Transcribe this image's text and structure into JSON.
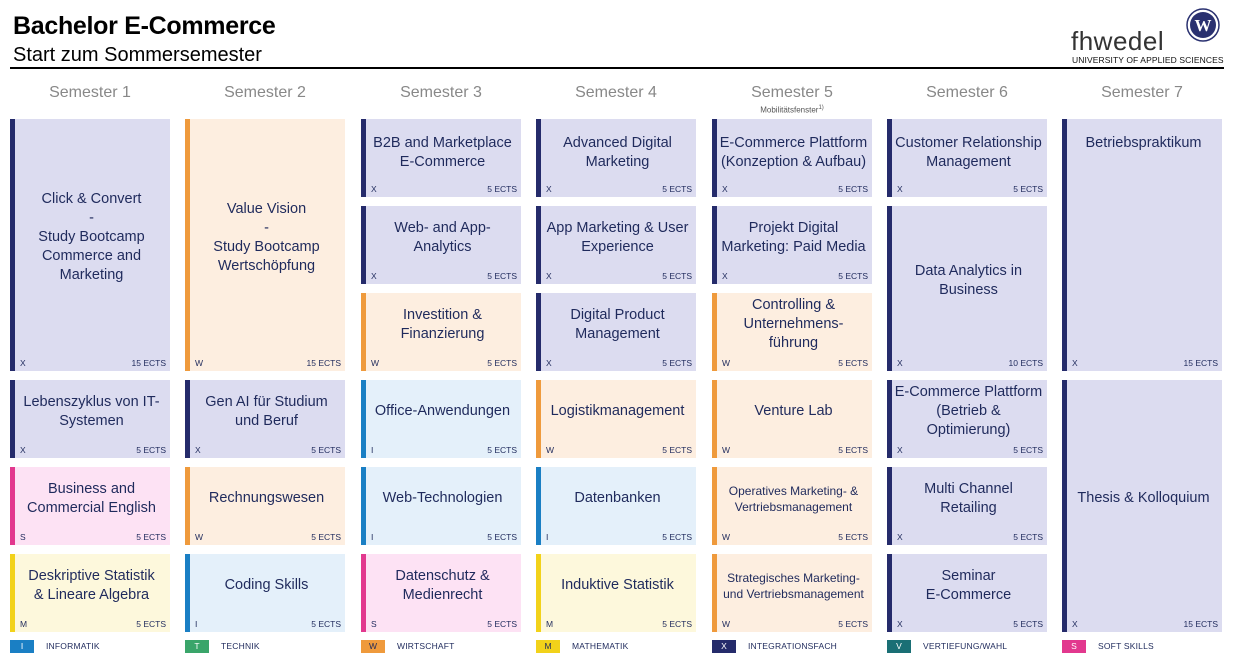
{
  "header": {
    "title": "Bachelor E-Commerce",
    "subtitle": "Start zum Sommersemester",
    "logo_text": "fhwedel",
    "logo_subtitle": "UNIVERSITY OF APPLIED SCIENCES",
    "logo_emblem_letter": "W"
  },
  "semesters": [
    {
      "label": "Semester 1",
      "note": ""
    },
    {
      "label": "Semester 2",
      "note": ""
    },
    {
      "label": "Semester 3",
      "note": ""
    },
    {
      "label": "Semester 4",
      "note": ""
    },
    {
      "label": "Semester 5",
      "note": "Mobilitätsfenster",
      "note_sup": "1)"
    },
    {
      "label": "Semester 6",
      "note": ""
    },
    {
      "label": "Semester 7",
      "note": ""
    }
  ],
  "modules": [
    {
      "col": 0,
      "row": 0,
      "span": 3,
      "name": "Click & Convert\n-\nStudy Bootcamp\nCommerce and\nMarketing",
      "code": "X",
      "ects": "15 ECTS"
    },
    {
      "col": 0,
      "row": 3,
      "span": 1,
      "name": "Lebenszyklus von IT-\nSystemen",
      "code": "X",
      "ects": "5 ECTS"
    },
    {
      "col": 0,
      "row": 4,
      "span": 1,
      "name": "Business and\nCommercial English",
      "code": "S",
      "ects": "5 ECTS"
    },
    {
      "col": 0,
      "row": 5,
      "span": 1,
      "name": "Deskriptive Statistik\n& Lineare Algebra",
      "code": "M",
      "ects": "5 ECTS"
    },
    {
      "col": 1,
      "row": 0,
      "span": 3,
      "name": "Value Vision\n-\nStudy Bootcamp\nWertschöpfung",
      "code": "W",
      "ects": "15 ECTS"
    },
    {
      "col": 1,
      "row": 3,
      "span": 1,
      "name": "Gen AI für Studium\nund Beruf",
      "code": "X",
      "ects": "5 ECTS"
    },
    {
      "col": 1,
      "row": 4,
      "span": 1,
      "name": "Rechnungswesen",
      "code": "W",
      "ects": "5 ECTS"
    },
    {
      "col": 1,
      "row": 5,
      "span": 1,
      "name": "Coding Skills",
      "code": "I",
      "ects": "5 ECTS"
    },
    {
      "col": 2,
      "row": 0,
      "span": 1,
      "name": "B2B and Marketplace\nE-Commerce",
      "code": "X",
      "ects": "5 ECTS",
      "top": true
    },
    {
      "col": 2,
      "row": 1,
      "span": 1,
      "name": "Web- and App-\nAnalytics",
      "code": "X",
      "ects": "5 ECTS"
    },
    {
      "col": 2,
      "row": 2,
      "span": 1,
      "name": "Investition &\nFinanzierung",
      "code": "W",
      "ects": "5 ECTS"
    },
    {
      "col": 2,
      "row": 3,
      "span": 1,
      "name": "Office-Anwendungen",
      "code": "I",
      "ects": "5 ECTS"
    },
    {
      "col": 2,
      "row": 4,
      "span": 1,
      "name": "Web-Technologien",
      "code": "I",
      "ects": "5 ECTS"
    },
    {
      "col": 2,
      "row": 5,
      "span": 1,
      "name": "Datenschutz &\nMedienrecht",
      "code": "S",
      "ects": "5 ECTS"
    },
    {
      "col": 3,
      "row": 0,
      "span": 1,
      "name": "Advanced Digital\nMarketing",
      "code": "X",
      "ects": "5 ECTS",
      "top": true
    },
    {
      "col": 3,
      "row": 1,
      "span": 1,
      "name": "App Marketing & User\nExperience",
      "code": "X",
      "ects": "5 ECTS"
    },
    {
      "col": 3,
      "row": 2,
      "span": 1,
      "name": "Digital Product\nManagement",
      "code": "X",
      "ects": "5 ECTS"
    },
    {
      "col": 3,
      "row": 3,
      "span": 1,
      "name": "Logistikmanagement",
      "code": "W",
      "ects": "5 ECTS"
    },
    {
      "col": 3,
      "row": 4,
      "span": 1,
      "name": "Datenbanken",
      "code": "I",
      "ects": "5 ECTS"
    },
    {
      "col": 3,
      "row": 5,
      "span": 1,
      "name": "Induktive Statistik",
      "code": "M",
      "ects": "5 ECTS"
    },
    {
      "col": 4,
      "row": 0,
      "span": 1,
      "name": "E-Commerce Plattform\n(Konzeption & Aufbau)",
      "code": "X",
      "ects": "5 ECTS",
      "top": true
    },
    {
      "col": 4,
      "row": 1,
      "span": 1,
      "name": "Projekt Digital\nMarketing: Paid Media",
      "code": "X",
      "ects": "5 ECTS"
    },
    {
      "col": 4,
      "row": 2,
      "span": 1,
      "name": "Controlling &\nUnternehmens-\nführung",
      "code": "W",
      "ects": "5 ECTS"
    },
    {
      "col": 4,
      "row": 3,
      "span": 1,
      "name": "Venture Lab",
      "code": "W",
      "ects": "5 ECTS"
    },
    {
      "col": 4,
      "row": 4,
      "span": 1,
      "name": "Operatives Marketing- &\nVertriebsmanagement",
      "code": "W",
      "ects": "5 ECTS",
      "small": true
    },
    {
      "col": 4,
      "row": 5,
      "span": 1,
      "name": "Strategisches Marketing-\nund Vertriebsmanagement",
      "code": "W",
      "ects": "5 ECTS",
      "small": true
    },
    {
      "col": 5,
      "row": 0,
      "span": 1,
      "name": "Customer Relationship\nManagement",
      "code": "X",
      "ects": "5 ECTS",
      "top": true
    },
    {
      "col": 5,
      "row": 1,
      "span": 2,
      "name": "Data Analytics in\nBusiness",
      "code": "X",
      "ects": "10 ECTS"
    },
    {
      "col": 5,
      "row": 3,
      "span": 1,
      "name": "E-Commerce Plattform\n(Betrieb &\nOptimierung)",
      "code": "X",
      "ects": "5 ECTS"
    },
    {
      "col": 5,
      "row": 4,
      "span": 1,
      "name": "Multi Channel Retailing",
      "code": "X",
      "ects": "5 ECTS"
    },
    {
      "col": 5,
      "row": 5,
      "span": 1,
      "name": "Seminar\nE-Commerce",
      "code": "X",
      "ects": "5 ECTS"
    },
    {
      "col": 6,
      "row": 0,
      "span": 3,
      "name": "Betriebspraktikum",
      "code": "X",
      "ects": "15 ECTS",
      "top": true
    },
    {
      "col": 6,
      "row": 3,
      "span": 3,
      "name": "Thesis & Kolloquium",
      "code": "X",
      "ects": "15 ECTS"
    }
  ],
  "legend": [
    {
      "code": "I",
      "label": "INFORMATIK",
      "color": "#1a7fc4",
      "text_color": "#ffffff"
    },
    {
      "code": "T",
      "label": "TECHNIK",
      "color": "#3aa56a",
      "text_color": "#ffffff"
    },
    {
      "code": "W",
      "label": "WIRTSCHAFT",
      "color": "#ef9a3c",
      "text_color": "#1f2a5c"
    },
    {
      "code": "M",
      "label": "MATHEMATIK",
      "color": "#f2d21a",
      "text_color": "#1f2a5c"
    },
    {
      "code": "X",
      "label": "INTEGRATIONSFACH",
      "color": "#252b6b",
      "text_color": "#ffffff"
    },
    {
      "code": "V",
      "label": "VERTIEFUNG/WAHL",
      "color": "#1a6f75",
      "text_color": "#ffffff"
    },
    {
      "code": "S",
      "label": "SOFT SKILLS",
      "color": "#e2388e",
      "text_color": "#ffffff"
    }
  ]
}
